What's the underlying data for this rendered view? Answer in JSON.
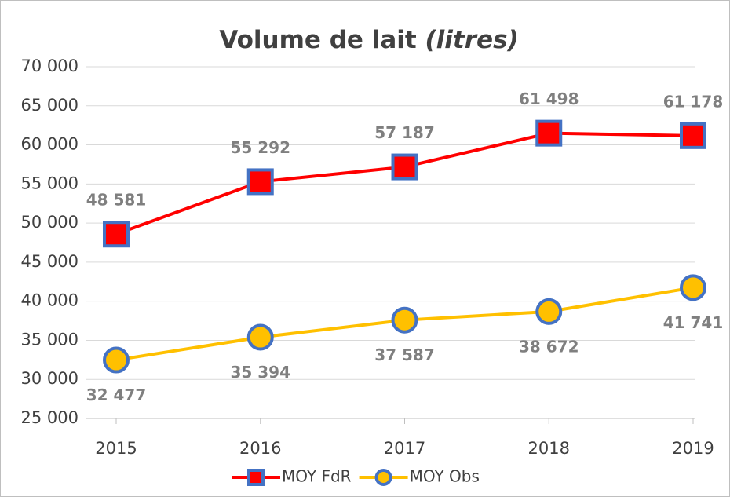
{
  "chart_data": {
    "type": "line",
    "title": "Volume de lait",
    "title_italic": "(litres)",
    "categories": [
      "2015",
      "2016",
      "2017",
      "2018",
      "2019"
    ],
    "series": [
      {
        "name": "MOY FdR",
        "color": "#ff0000",
        "marker_edge": "#4472c4",
        "values": [
          48581,
          55292,
          57187,
          61498,
          61178
        ],
        "value_labels": [
          "48 581",
          "55 292",
          "57 187",
          "61 498",
          "61 178"
        ],
        "label_position": "above"
      },
      {
        "name": "MOY Obs",
        "color": "#ffc000",
        "marker_edge": "#4472c4",
        "values": [
          32477,
          35394,
          37587,
          38672,
          41741
        ],
        "value_labels": [
          "32 477",
          "35 394",
          "37 587",
          "38 672",
          "41 741"
        ],
        "label_position": "below"
      }
    ],
    "ylim": [
      25000,
      70000
    ],
    "yticks": [
      {
        "value": 25000,
        "label": "25 000"
      },
      {
        "value": 30000,
        "label": "30 000"
      },
      {
        "value": 35000,
        "label": "35 000"
      },
      {
        "value": 40000,
        "label": "40 000"
      },
      {
        "value": 45000,
        "label": "45 000"
      },
      {
        "value": 50000,
        "label": "50 000"
      },
      {
        "value": 55000,
        "label": "55 000"
      },
      {
        "value": 60000,
        "label": "60 000"
      },
      {
        "value": 65000,
        "label": "65 000"
      },
      {
        "value": 70000,
        "label": "70 000"
      }
    ],
    "grid": true,
    "legend": "bottom"
  }
}
